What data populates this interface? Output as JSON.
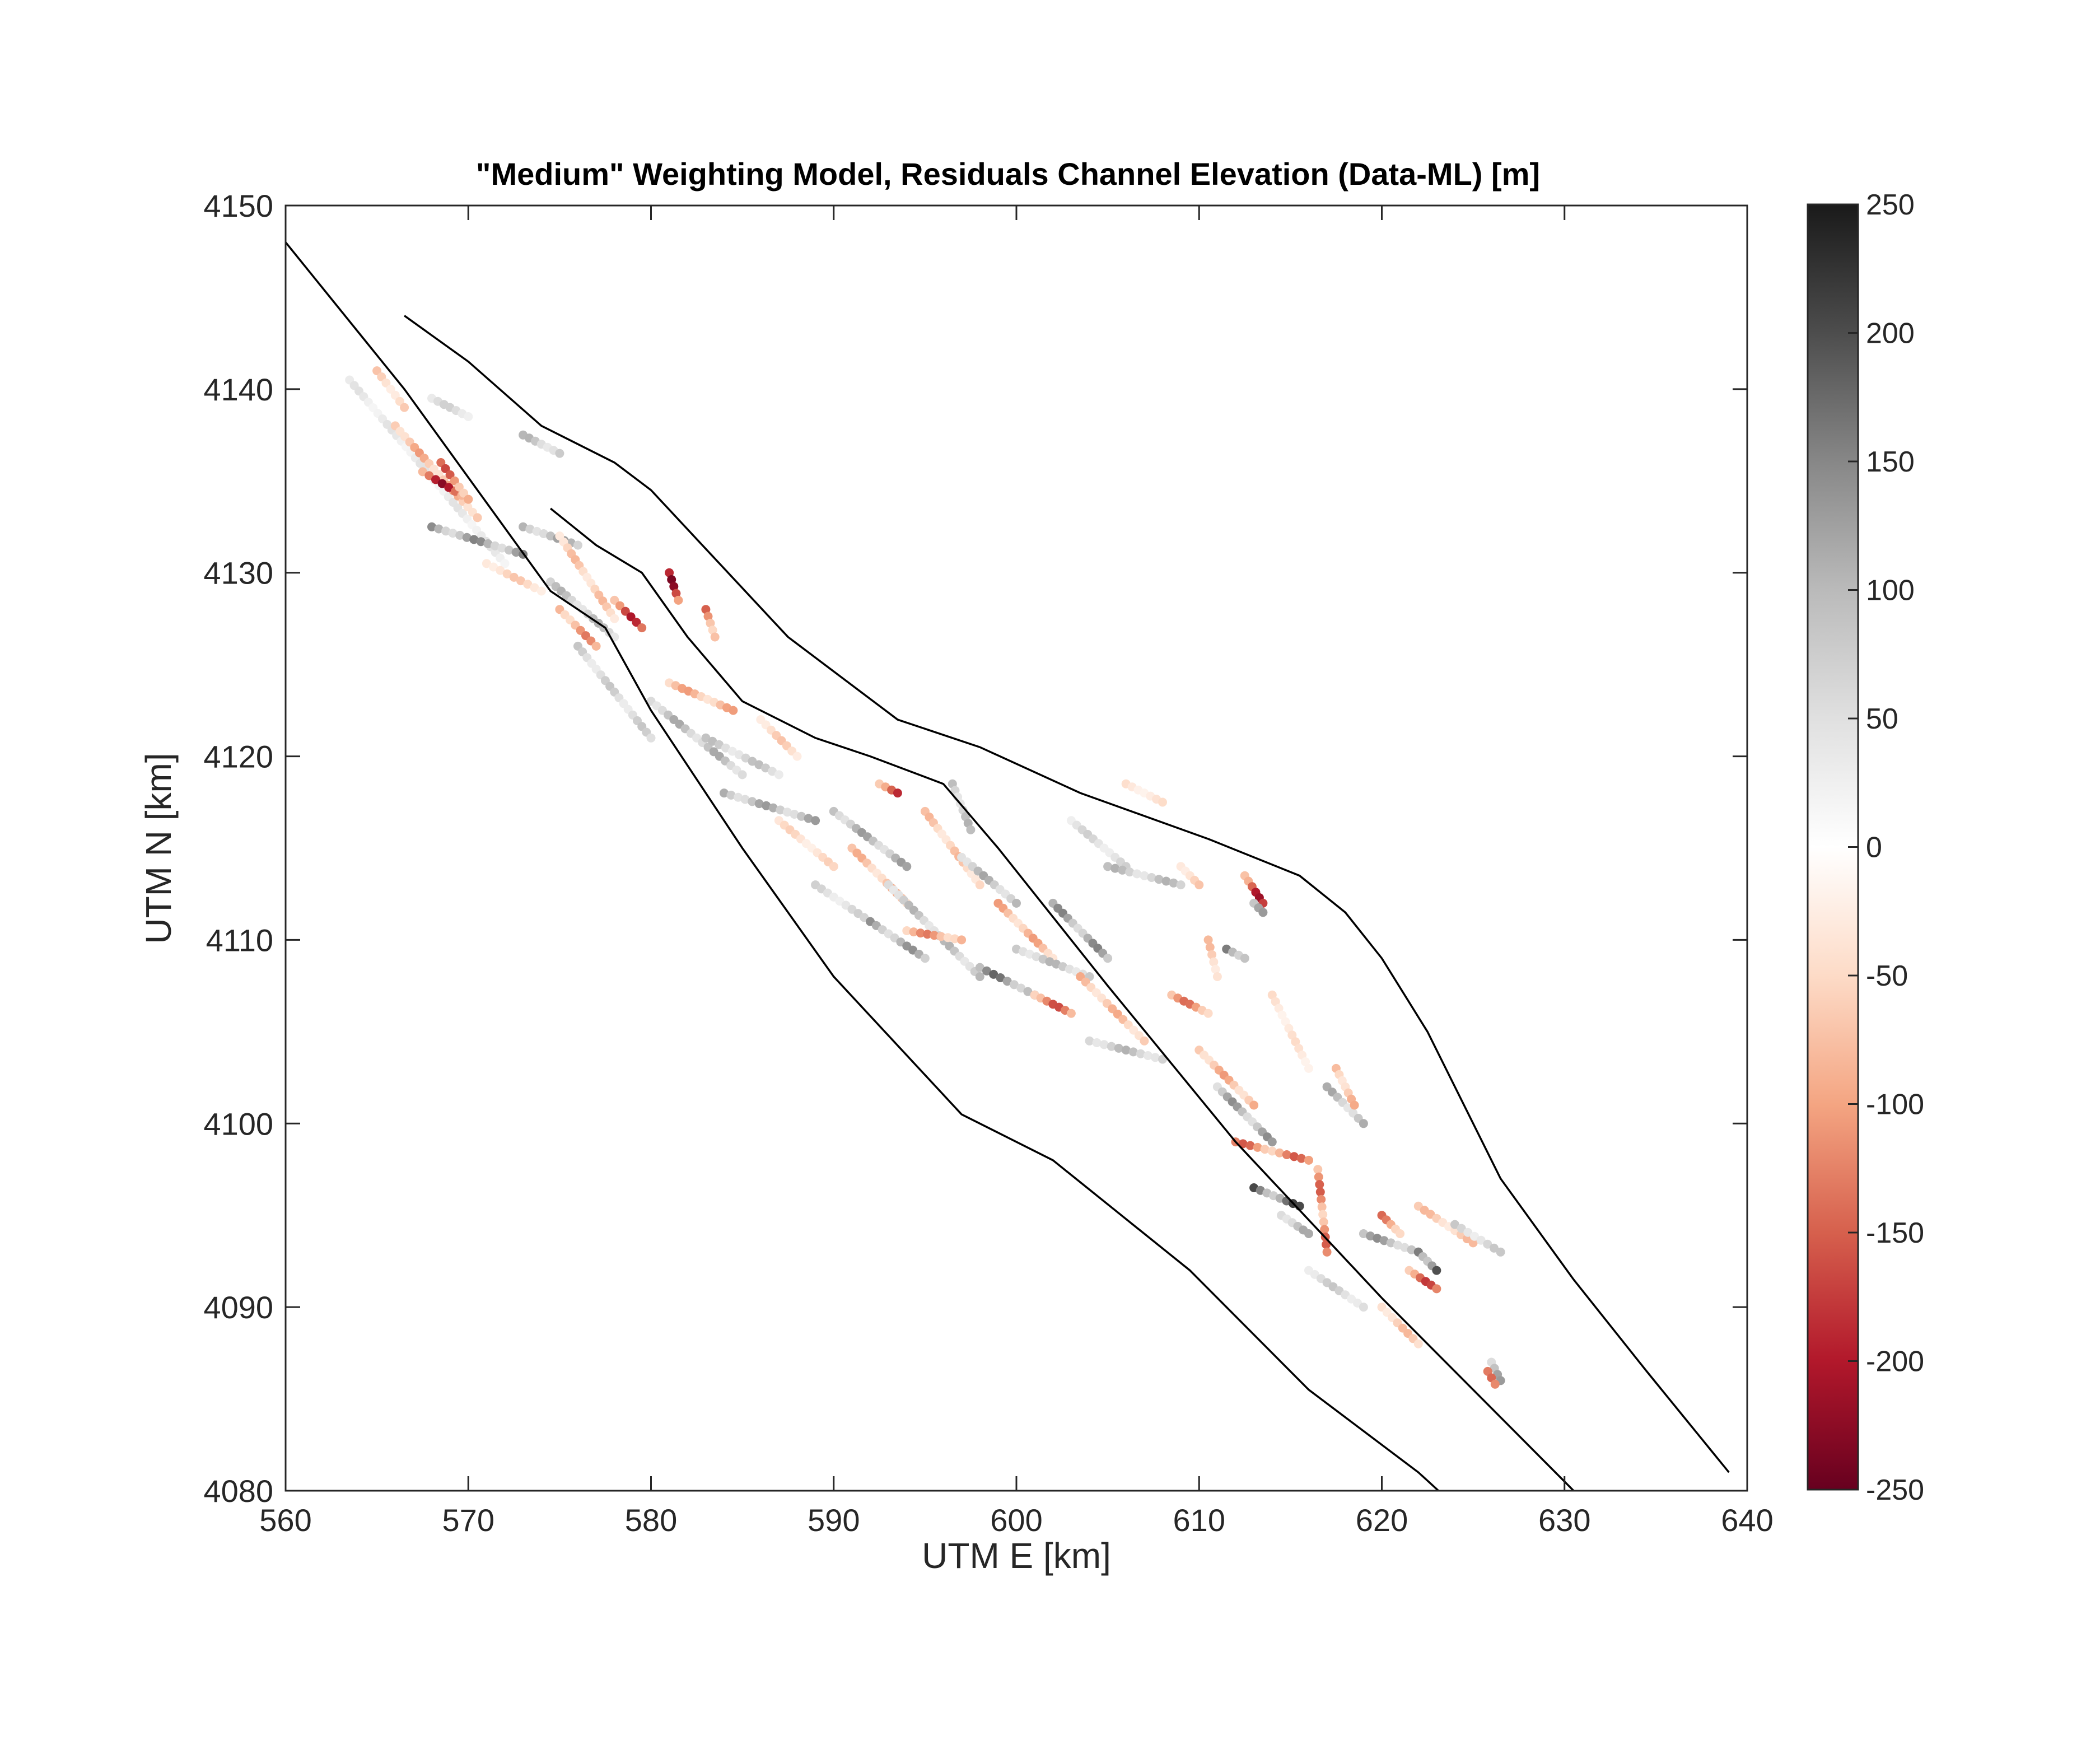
{
  "chart_data": {
    "type": "scatter",
    "title": "\"Medium\" Weighting Model, Residuals Channel Elevation (Data-ML) [m]",
    "xlabel": "UTM E [km]",
    "ylabel": "UTM N [km]",
    "xlim": [
      560,
      640
    ],
    "ylim": [
      4080,
      4150
    ],
    "xticks": [
      560,
      570,
      580,
      590,
      600,
      610,
      620,
      630,
      640
    ],
    "yticks": [
      4080,
      4090,
      4100,
      4110,
      4120,
      4130,
      4140,
      4150
    ],
    "grid": false,
    "colorbar": {
      "label": "",
      "range": [
        -250,
        250
      ],
      "ticks": [
        250,
        200,
        150,
        100,
        50,
        0,
        -50,
        -100,
        -150,
        -200,
        -250
      ],
      "colormap": "diverging red-white-gray",
      "stops": [
        "#67001f",
        "#b2182b",
        "#d6604d",
        "#f4a582",
        "#fddbc7",
        "#ffffff",
        "#e0e0e0",
        "#bababa",
        "#878787",
        "#4d4d4d",
        "#1a1a1a"
      ]
    },
    "boundary_lines": [
      {
        "x": [
          560,
          566.5,
          574.5,
          577.5,
          580,
          585,
          590,
          597,
          602,
          609.5,
          616,
          622,
          627.5,
          630
        ],
        "y": [
          4148,
          4140,
          4129,
          4127,
          4122.5,
          4115,
          4108,
          4100.5,
          4098,
          4092,
          4085.5,
          4081,
          4076,
          4073
        ]
      },
      {
        "x": [
          574.5,
          577,
          579.5,
          582,
          585,
          589,
          592,
          596,
          599,
          605,
          612,
          620,
          626,
          633.5
        ],
        "y": [
          4133.5,
          4131.5,
          4130,
          4126.5,
          4123,
          4121,
          4120,
          4118.5,
          4115,
          4107.5,
          4099,
          4090.5,
          4084.5,
          4077
        ]
      },
      {
        "x": [
          566.5,
          570,
          574,
          578,
          580,
          587.5,
          593.5,
          598,
          603.5,
          610.5,
          615.5,
          618,
          620,
          622.5,
          626.5,
          630.5,
          634.5,
          639
        ],
        "y": [
          4144,
          4141.5,
          4138,
          4136,
          4134.5,
          4126.5,
          4122,
          4120.5,
          4118,
          4115.5,
          4113.5,
          4111.5,
          4109,
          4105,
          4097,
          4091.5,
          4086.5,
          4081
        ]
      }
    ],
    "tracks": [
      {
        "x1": 563.5,
        "y1": 4140.5,
        "x2": 572,
        "y2": 4130.5,
        "v": 40
      },
      {
        "x1": 565,
        "y1": 4141,
        "x2": 566.5,
        "y2": 4139,
        "v": -60
      },
      {
        "x1": 566,
        "y1": 4138,
        "x2": 570.5,
        "y2": 4133,
        "v": -90
      },
      {
        "x1": 567.5,
        "y1": 4135.5,
        "x2": 570,
        "y2": 4134,
        "v": -190
      },
      {
        "x1": 568.5,
        "y1": 4136,
        "x2": 570,
        "y2": 4134,
        "v": -140
      },
      {
        "x1": 568,
        "y1": 4132.5,
        "x2": 573,
        "y2": 4131,
        "v": 130
      },
      {
        "x1": 571,
        "y1": 4130.5,
        "x2": 574,
        "y2": 4129,
        "v": -60
      },
      {
        "x1": 568,
        "y1": 4139.5,
        "x2": 570,
        "y2": 4138.5,
        "v": 60
      },
      {
        "x1": 573,
        "y1": 4137.5,
        "x2": 575,
        "y2": 4136.5,
        "v": 90
      },
      {
        "x1": 573,
        "y1": 4132.5,
        "x2": 576,
        "y2": 4131.5,
        "v": 110
      },
      {
        "x1": 575,
        "y1": 4132,
        "x2": 578,
        "y2": 4127.5,
        "v": -70
      },
      {
        "x1": 574.5,
        "y1": 4129.5,
        "x2": 578,
        "y2": 4126.5,
        "v": 90
      },
      {
        "x1": 576,
        "y1": 4126,
        "x2": 580,
        "y2": 4121,
        "v": 70
      },
      {
        "x1": 575,
        "y1": 4128,
        "x2": 577,
        "y2": 4126,
        "v": -110
      },
      {
        "x1": 578,
        "y1": 4128.5,
        "x2": 579.5,
        "y2": 4127,
        "v": -170
      },
      {
        "x1": 581,
        "y1": 4130,
        "x2": 581.5,
        "y2": 4128.5,
        "v": -200
      },
      {
        "x1": 583,
        "y1": 4128,
        "x2": 583.5,
        "y2": 4126.5,
        "v": -130
      },
      {
        "x1": 580,
        "y1": 4123,
        "x2": 585,
        "y2": 4119,
        "v": 100
      },
      {
        "x1": 581,
        "y1": 4124,
        "x2": 584.5,
        "y2": 4122.5,
        "v": -90
      },
      {
        "x1": 583,
        "y1": 4121,
        "x2": 587,
        "y2": 4119,
        "v": 80
      },
      {
        "x1": 584,
        "y1": 4118,
        "x2": 589,
        "y2": 4116.5,
        "v": 110
      },
      {
        "x1": 586,
        "y1": 4122,
        "x2": 588,
        "y2": 4120,
        "v": -60
      },
      {
        "x1": 587,
        "y1": 4116.5,
        "x2": 590,
        "y2": 4114,
        "v": -50
      },
      {
        "x1": 589,
        "y1": 4113,
        "x2": 592,
        "y2": 4111,
        "v": 60
      },
      {
        "x1": 590,
        "y1": 4117,
        "x2": 594,
        "y2": 4114,
        "v": 110
      },
      {
        "x1": 592.5,
        "y1": 4118.5,
        "x2": 593.5,
        "y2": 4118,
        "v": -160
      },
      {
        "x1": 591,
        "y1": 4115,
        "x2": 594,
        "y2": 4112,
        "v": -80
      },
      {
        "x1": 592,
        "y1": 4111,
        "x2": 595,
        "y2": 4109,
        "v": 120
      },
      {
        "x1": 593,
        "y1": 4113,
        "x2": 598,
        "y2": 4108,
        "v": 90
      },
      {
        "x1": 594,
        "y1": 4110.5,
        "x2": 597,
        "y2": 4110,
        "v": -110
      },
      {
        "x1": 595,
        "y1": 4117,
        "x2": 598,
        "y2": 4113,
        "v": -70
      },
      {
        "x1": 596.5,
        "y1": 4118.5,
        "x2": 597.5,
        "y2": 4116,
        "v": 90
      },
      {
        "x1": 597,
        "y1": 4114.5,
        "x2": 600,
        "y2": 4112,
        "v": 100
      },
      {
        "x1": 598,
        "y1": 4108.5,
        "x2": 601,
        "y2": 4107,
        "v": 150
      },
      {
        "x1": 599,
        "y1": 4112,
        "x2": 602,
        "y2": 4109,
        "v": -90
      },
      {
        "x1": 600,
        "y1": 4109.5,
        "x2": 604,
        "y2": 4108,
        "v": 90
      },
      {
        "x1": 601,
        "y1": 4107,
        "x2": 603,
        "y2": 4106,
        "v": -140
      },
      {
        "x1": 602,
        "y1": 4112,
        "x2": 605,
        "y2": 4109,
        "v": 130
      },
      {
        "x1": 603.5,
        "y1": 4108,
        "x2": 607,
        "y2": 4104.5,
        "v": -80
      },
      {
        "x1": 604,
        "y1": 4104.5,
        "x2": 608,
        "y2": 4103.5,
        "v": 90
      },
      {
        "x1": 603,
        "y1": 4116.5,
        "x2": 606,
        "y2": 4114,
        "v": 60
      },
      {
        "x1": 605,
        "y1": 4114,
        "x2": 609,
        "y2": 4113,
        "v": 90
      },
      {
        "x1": 606,
        "y1": 4118.5,
        "x2": 608,
        "y2": 4117.5,
        "v": -40
      },
      {
        "x1": 609,
        "y1": 4114,
        "x2": 610,
        "y2": 4113,
        "v": -60
      },
      {
        "x1": 608.5,
        "y1": 4107,
        "x2": 610.5,
        "y2": 4106,
        "v": -120
      },
      {
        "x1": 610.5,
        "y1": 4110,
        "x2": 611,
        "y2": 4108,
        "v": -70
      },
      {
        "x1": 611.5,
        "y1": 4109.5,
        "x2": 612.5,
        "y2": 4109,
        "v": 170
      },
      {
        "x1": 612.5,
        "y1": 4113.5,
        "x2": 613.5,
        "y2": 4112,
        "v": -180
      },
      {
        "x1": 613,
        "y1": 4112,
        "x2": 613.5,
        "y2": 4111.5,
        "v": 110
      },
      {
        "x1": 614,
        "y1": 4107,
        "x2": 616,
        "y2": 4103,
        "v": -40
      },
      {
        "x1": 610,
        "y1": 4104,
        "x2": 613,
        "y2": 4101,
        "v": -90
      },
      {
        "x1": 611,
        "y1": 4102,
        "x2": 614,
        "y2": 4099,
        "v": 120
      },
      {
        "x1": 612,
        "y1": 4099,
        "x2": 616,
        "y2": 4098,
        "v": -130
      },
      {
        "x1": 613,
        "y1": 4096.5,
        "x2": 615.5,
        "y2": 4095.5,
        "v": 180
      },
      {
        "x1": 614.5,
        "y1": 4095,
        "x2": 616,
        "y2": 4094,
        "v": 100
      },
      {
        "x1": 616.5,
        "y1": 4097.5,
        "x2": 617,
        "y2": 4093,
        "v": -130
      },
      {
        "x1": 617,
        "y1": 4102,
        "x2": 619,
        "y2": 4100,
        "v": 100
      },
      {
        "x1": 617.5,
        "y1": 4103,
        "x2": 618.5,
        "y2": 4101,
        "v": -80
      },
      {
        "x1": 616,
        "y1": 4092,
        "x2": 619,
        "y2": 4090,
        "v": 70
      },
      {
        "x1": 619,
        "y1": 4094,
        "x2": 622,
        "y2": 4093,
        "v": 120
      },
      {
        "x1": 620,
        "y1": 4095,
        "x2": 621,
        "y2": 4094,
        "v": -120
      },
      {
        "x1": 622,
        "y1": 4093,
        "x2": 623,
        "y2": 4092,
        "v": 200
      },
      {
        "x1": 621.5,
        "y1": 4092,
        "x2": 623,
        "y2": 4091,
        "v": -150
      },
      {
        "x1": 622,
        "y1": 4095.5,
        "x2": 625,
        "y2": 4093.5,
        "v": -70
      },
      {
        "x1": 624,
        "y1": 4094.5,
        "x2": 626.5,
        "y2": 4093,
        "v": 70
      },
      {
        "x1": 620,
        "y1": 4090,
        "x2": 622,
        "y2": 4088,
        "v": -70
      },
      {
        "x1": 626,
        "y1": 4087,
        "x2": 626.5,
        "y2": 4086,
        "v": 110
      },
      {
        "x1": 625.8,
        "y1": 4086.5,
        "x2": 626.2,
        "y2": 4085.8,
        "v": -120
      }
    ]
  }
}
